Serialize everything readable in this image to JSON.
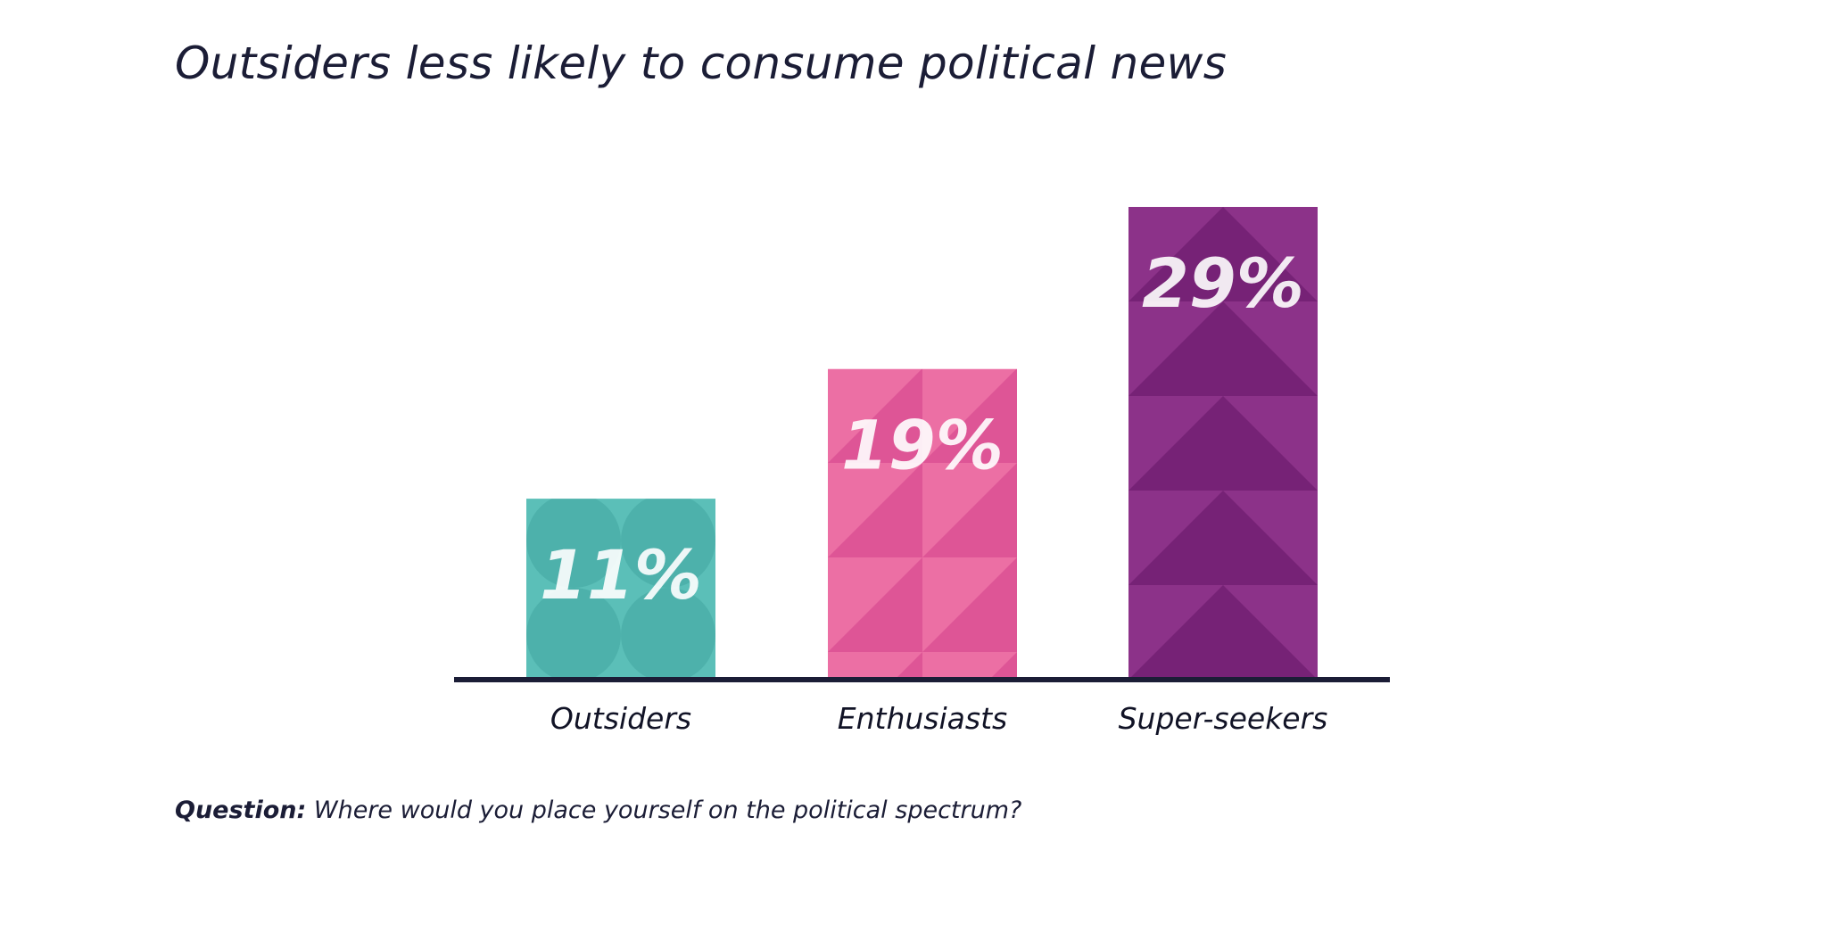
{
  "title": "Outsiders less likely to consume political news",
  "question": {
    "label": "Question:",
    "text": "Where would you place yourself on the political spectrum?"
  },
  "colors": {
    "outsiders": "#5bbfb8",
    "enthusiasts": "#e4609c",
    "super_seekers": "#8b318a",
    "baseline": "#1b1d36"
  },
  "chart_data": {
    "type": "bar",
    "title": "Outsiders less likely to consume political news",
    "xlabel": "",
    "ylabel": "",
    "categories": [
      "Outsiders",
      "Enthusiasts",
      "Super-seekers"
    ],
    "values": [
      11,
      19,
      29
    ],
    "value_labels": [
      "11%",
      "19%",
      "29%"
    ],
    "unit": "%",
    "ylim": [
      0,
      29
    ],
    "grid": false,
    "legend": "none"
  }
}
